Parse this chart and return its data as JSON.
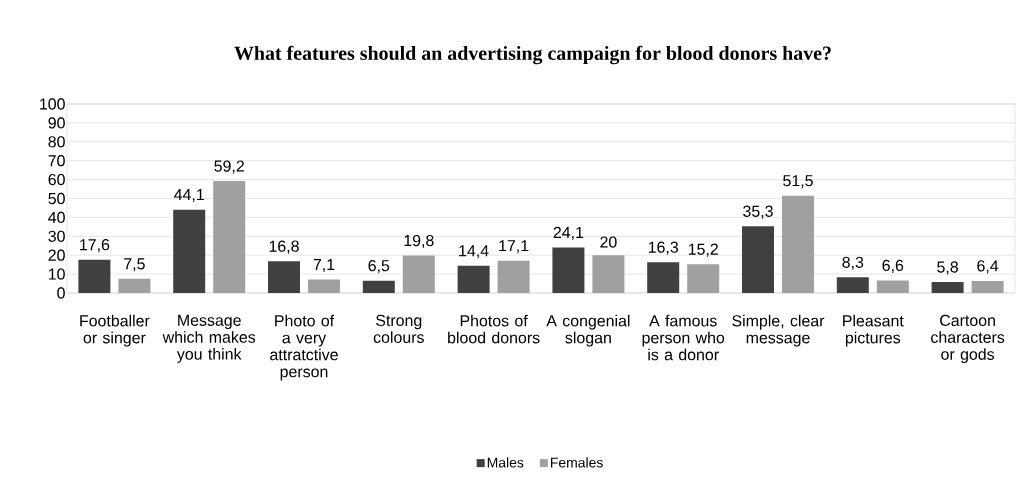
{
  "chart_data": {
    "type": "bar",
    "title": "What features should an advertising campaign for blood donors have?",
    "categories": [
      "Footballer or singer",
      "Message which makes you think",
      "Photo of a very attratctive person",
      "Strong colours",
      "Photos of blood donors",
      "A congenial slogan",
      "A famous person who is a donor",
      "Simple, clear message",
      "Pleasant pictures",
      "Cartoon characters or gods"
    ],
    "series": [
      {
        "name": "Males",
        "color": "#404040",
        "values": [
          17.6,
          44.1,
          16.8,
          6.5,
          14.4,
          24.1,
          16.3,
          35.3,
          8.3,
          5.8
        ],
        "value_labels": [
          "17,6",
          "44,1",
          "16,8",
          "6,5",
          "14,4",
          "24,1",
          "16,3",
          "35,3",
          "8,3",
          "5,8"
        ]
      },
      {
        "name": "Females",
        "color": "#a0a0a0",
        "values": [
          7.5,
          59.2,
          7.1,
          19.8,
          17.1,
          20,
          15.2,
          51.5,
          6.6,
          6.4
        ],
        "value_labels": [
          "7,5",
          "59,2",
          "7,1",
          "19,8",
          "17,1",
          "20",
          "15,2",
          "51,5",
          "6,6",
          "6,4"
        ]
      }
    ],
    "ylim": [
      0,
      100
    ],
    "yticks": [
      0,
      10,
      20,
      30,
      40,
      50,
      60,
      70,
      80,
      90,
      100
    ],
    "grid": "y",
    "legend": "bottom"
  }
}
